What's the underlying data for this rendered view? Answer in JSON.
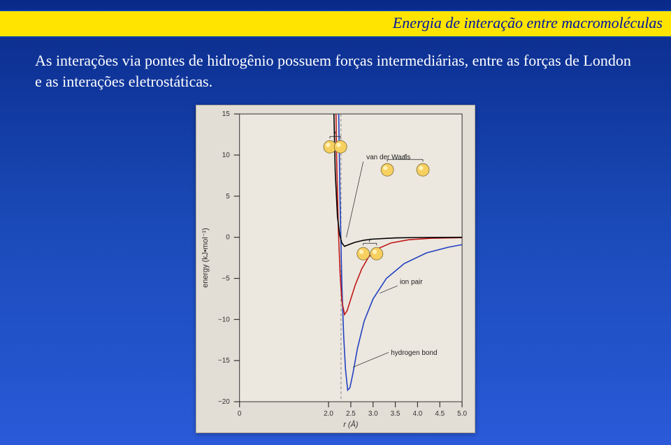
{
  "header": {
    "title": "Energia de interação entre macromoléculas"
  },
  "body": {
    "text": "As interações via pontes de hidrogênio possuem forças intermediárias, entre as forças de London e as interações eletrostáticas."
  },
  "chart": {
    "type": "line",
    "background_color": "#e2ddd5",
    "panel_color": "#ece7df",
    "axis_color": "#333333",
    "grid_color": "#cccccc",
    "xlabel": "r (Å)",
    "ylabel": "energy (kJ•mol⁻¹)",
    "label_fontsize": 11,
    "tick_fontsize": 10,
    "xlim": [
      0,
      5.0
    ],
    "ylim": [
      -20,
      15
    ],
    "xticks": [
      0,
      2.0,
      2.5,
      3.0,
      3.5,
      4.0,
      4.5,
      5.0
    ],
    "yticks": [
      -20,
      -15,
      -10,
      -5,
      0,
      5,
      10,
      15
    ],
    "yticks_labels": [
      "−20",
      "−15",
      "−10",
      "−5",
      "0",
      "5",
      "10",
      "15"
    ],
    "vertical_dash_x": 2.28,
    "vertical_dash_color": "#888888",
    "series": {
      "vdw": {
        "label": "van der Waals",
        "color": "#000000",
        "width": 1.6,
        "data": [
          [
            2.05,
            40
          ],
          [
            2.1,
            20
          ],
          [
            2.15,
            8
          ],
          [
            2.2,
            2.5
          ],
          [
            2.25,
            0.3
          ],
          [
            2.3,
            -0.7
          ],
          [
            2.36,
            -1.1
          ],
          [
            2.45,
            -0.9
          ],
          [
            2.6,
            -0.6
          ],
          [
            2.8,
            -0.35
          ],
          [
            3.0,
            -0.22
          ],
          [
            3.5,
            -0.08
          ],
          [
            4.0,
            -0.03
          ],
          [
            4.5,
            -0.01
          ],
          [
            5.0,
            -0.005
          ]
        ],
        "label_pos": [
          2.85,
          9.5
        ],
        "atoms_close": {
          "cx": 2.15,
          "cy": 11.0,
          "gap": 0.12
        },
        "atoms_far": {
          "cx": 3.72,
          "cy": 8.2,
          "gap": 0.4
        }
      },
      "hbond": {
        "label": "hydrogen bond",
        "color": "#c01818",
        "width": 1.6,
        "data": [
          [
            2.12,
            40
          ],
          [
            2.15,
            22
          ],
          [
            2.18,
            10
          ],
          [
            2.22,
            1
          ],
          [
            2.26,
            -4.5
          ],
          [
            2.3,
            -7.8
          ],
          [
            2.36,
            -9.4
          ],
          [
            2.42,
            -8.9
          ],
          [
            2.5,
            -7.5
          ],
          [
            2.6,
            -5.8
          ],
          [
            2.75,
            -3.8
          ],
          [
            2.9,
            -2.4
          ],
          [
            3.1,
            -1.4
          ],
          [
            3.4,
            -0.7
          ],
          [
            3.8,
            -0.3
          ],
          [
            4.3,
            -0.12
          ],
          [
            5.0,
            -0.05
          ]
        ],
        "label_pos": [
          3.4,
          -14.3
        ],
        "atoms": {
          "cx": 2.93,
          "cy": -2.0,
          "gap": 0.15
        }
      },
      "ion": {
        "label": "ion pair",
        "color": "#2040c0",
        "width": 1.6,
        "data": [
          [
            2.18,
            40
          ],
          [
            2.22,
            18
          ],
          [
            2.26,
            4
          ],
          [
            2.3,
            -6
          ],
          [
            2.34,
            -12
          ],
          [
            2.38,
            -16
          ],
          [
            2.43,
            -18.6
          ],
          [
            2.48,
            -18.3
          ],
          [
            2.55,
            -16.5
          ],
          [
            2.65,
            -13.5
          ],
          [
            2.8,
            -10.2
          ],
          [
            3.0,
            -7.5
          ],
          [
            3.3,
            -5.0
          ],
          [
            3.7,
            -3.2
          ],
          [
            4.2,
            -1.9
          ],
          [
            4.7,
            -1.2
          ],
          [
            5.0,
            -0.9
          ]
        ],
        "label_pos": [
          3.6,
          -5.7
        ]
      }
    },
    "atom_fill": "#f8d060",
    "atom_stroke": "#7a6a30",
    "atom_r": 9,
    "bracket_label": "r"
  }
}
